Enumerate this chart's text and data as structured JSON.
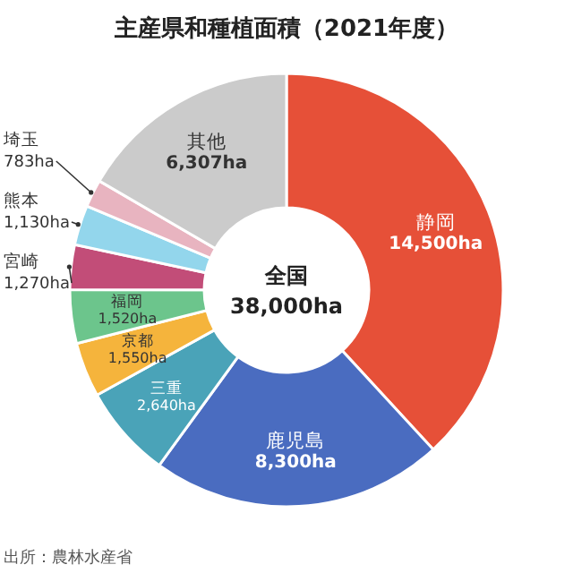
{
  "chart_data": {
    "type": "donut",
    "title": "主産県和種植面積（2021年度）",
    "categories": [
      "静岡",
      "鹿児島",
      "三重",
      "京都",
      "福岡",
      "宮崎",
      "熊本",
      "埼玉",
      "其他"
    ],
    "values": [
      14500,
      8300,
      2640,
      1550,
      1520,
      1270,
      1130,
      783,
      6307
    ],
    "value_labels": [
      "14,500ha",
      "8,300ha",
      "2,640ha",
      "1,550ha",
      "1,520ha",
      "1,270ha",
      "1,130ha",
      "783ha",
      "6,307ha"
    ],
    "colors": [
      "#e65038",
      "#4a6cc0",
      "#4aa3b8",
      "#f5b43c",
      "#6cc58c",
      "#c24d78",
      "#93d6ec",
      "#e8b4c0",
      "#cbcbcb"
    ],
    "annotations": [
      "全国",
      "38,000ha",
      "出所：農林水産省"
    ]
  }
}
